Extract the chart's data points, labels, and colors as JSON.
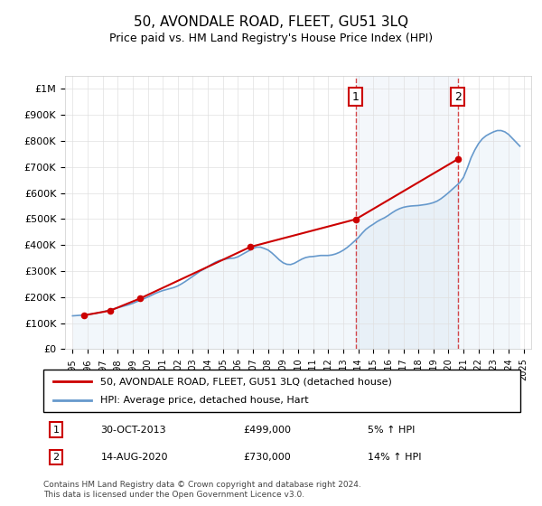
{
  "title": "50, AVONDALE ROAD, FLEET, GU51 3LQ",
  "subtitle": "Price paid vs. HM Land Registry's House Price Index (HPI)",
  "legend_line1": "50, AVONDALE ROAD, FLEET, GU51 3LQ (detached house)",
  "legend_line2": "HPI: Average price, detached house, Hart",
  "annotation1_label": "1",
  "annotation1_date": "30-OCT-2013",
  "annotation1_price": "£499,000",
  "annotation1_hpi": "5% ↑ HPI",
  "annotation2_label": "2",
  "annotation2_date": "14-AUG-2020",
  "annotation2_price": "£730,000",
  "annotation2_hpi": "14% ↑ HPI",
  "footer": "Contains HM Land Registry data © Crown copyright and database right 2024.\nThis data is licensed under the Open Government Licence v3.0.",
  "price_line_color": "#cc0000",
  "hpi_line_color": "#6699cc",
  "hpi_fill_color": "#cce0f0",
  "vline_color": "#cc0000",
  "vline_style": "dashed",
  "annotation_box_color": "#cc0000",
  "ylim": [
    0,
    1050000
  ],
  "yticks": [
    0,
    100000,
    200000,
    300000,
    400000,
    500000,
    600000,
    700000,
    800000,
    900000,
    1000000
  ],
  "ytick_labels": [
    "£0",
    "£100K",
    "£200K",
    "£300K",
    "£400K",
    "£500K",
    "£600K",
    "£700K",
    "£800K",
    "£900K",
    "£1M"
  ],
  "xlim_start": 1994.5,
  "xlim_end": 2025.5,
  "xtick_years": [
    1995,
    1996,
    1997,
    1998,
    1999,
    2000,
    2001,
    2002,
    2003,
    2004,
    2005,
    2006,
    2007,
    2008,
    2009,
    2010,
    2011,
    2012,
    2013,
    2014,
    2015,
    2016,
    2017,
    2018,
    2019,
    2020,
    2021,
    2022,
    2023,
    2024,
    2025
  ],
  "hpi_years": [
    1995.0,
    1995.25,
    1995.5,
    1995.75,
    1996.0,
    1996.25,
    1996.5,
    1996.75,
    1997.0,
    1997.25,
    1997.5,
    1997.75,
    1998.0,
    1998.25,
    1998.5,
    1998.75,
    1999.0,
    1999.25,
    1999.5,
    1999.75,
    2000.0,
    2000.25,
    2000.5,
    2000.75,
    2001.0,
    2001.25,
    2001.5,
    2001.75,
    2002.0,
    2002.25,
    2002.5,
    2002.75,
    2003.0,
    2003.25,
    2003.5,
    2003.75,
    2004.0,
    2004.25,
    2004.5,
    2004.75,
    2005.0,
    2005.25,
    2005.5,
    2005.75,
    2006.0,
    2006.25,
    2006.5,
    2006.75,
    2007.0,
    2007.25,
    2007.5,
    2007.75,
    2008.0,
    2008.25,
    2008.5,
    2008.75,
    2009.0,
    2009.25,
    2009.5,
    2009.75,
    2010.0,
    2010.25,
    2010.5,
    2010.75,
    2011.0,
    2011.25,
    2011.5,
    2011.75,
    2012.0,
    2012.25,
    2012.5,
    2012.75,
    2013.0,
    2013.25,
    2013.5,
    2013.75,
    2014.0,
    2014.25,
    2014.5,
    2014.75,
    2015.0,
    2015.25,
    2015.5,
    2015.75,
    2016.0,
    2016.25,
    2016.5,
    2016.75,
    2017.0,
    2017.25,
    2017.5,
    2017.75,
    2018.0,
    2018.25,
    2018.5,
    2018.75,
    2019.0,
    2019.25,
    2019.5,
    2019.75,
    2020.0,
    2020.25,
    2020.5,
    2020.75,
    2021.0,
    2021.25,
    2021.5,
    2021.75,
    2022.0,
    2022.25,
    2022.5,
    2022.75,
    2023.0,
    2023.25,
    2023.5,
    2023.75,
    2024.0,
    2024.25,
    2024.5,
    2024.75
  ],
  "hpi_values": [
    128000,
    129000,
    130000,
    131000,
    133000,
    135000,
    137000,
    140000,
    143000,
    147000,
    151000,
    155000,
    159000,
    163000,
    167000,
    171000,
    176000,
    182000,
    188000,
    194000,
    200000,
    207000,
    214000,
    220000,
    225000,
    229000,
    233000,
    237000,
    243000,
    251000,
    260000,
    270000,
    280000,
    290000,
    300000,
    308000,
    317000,
    326000,
    334000,
    340000,
    344000,
    347000,
    349000,
    350000,
    355000,
    363000,
    371000,
    379000,
    387000,
    392000,
    392000,
    387000,
    381000,
    370000,
    357000,
    343000,
    332000,
    326000,
    325000,
    330000,
    338000,
    346000,
    352000,
    355000,
    356000,
    358000,
    360000,
    360000,
    360000,
    362000,
    366000,
    372000,
    380000,
    390000,
    402000,
    415000,
    428000,
    445000,
    460000,
    471000,
    480000,
    490000,
    498000,
    505000,
    514000,
    524000,
    533000,
    540000,
    545000,
    548000,
    550000,
    551000,
    552000,
    554000,
    556000,
    559000,
    563000,
    569000,
    578000,
    589000,
    601000,
    614000,
    627000,
    640000,
    660000,
    695000,
    735000,
    765000,
    790000,
    808000,
    820000,
    828000,
    835000,
    840000,
    840000,
    835000,
    825000,
    810000,
    795000,
    780000
  ],
  "price_paid_years": [
    1995.75,
    1997.5,
    1999.5,
    2006.83,
    2013.83,
    2020.62
  ],
  "price_paid_values": [
    130000,
    148000,
    195000,
    393000,
    499000,
    730000
  ],
  "vline1_x": 2013.83,
  "vline2_x": 2020.62,
  "background_color": "#ffffff",
  "plot_bg_color": "#ffffff",
  "grid_color": "#e0e0e0"
}
